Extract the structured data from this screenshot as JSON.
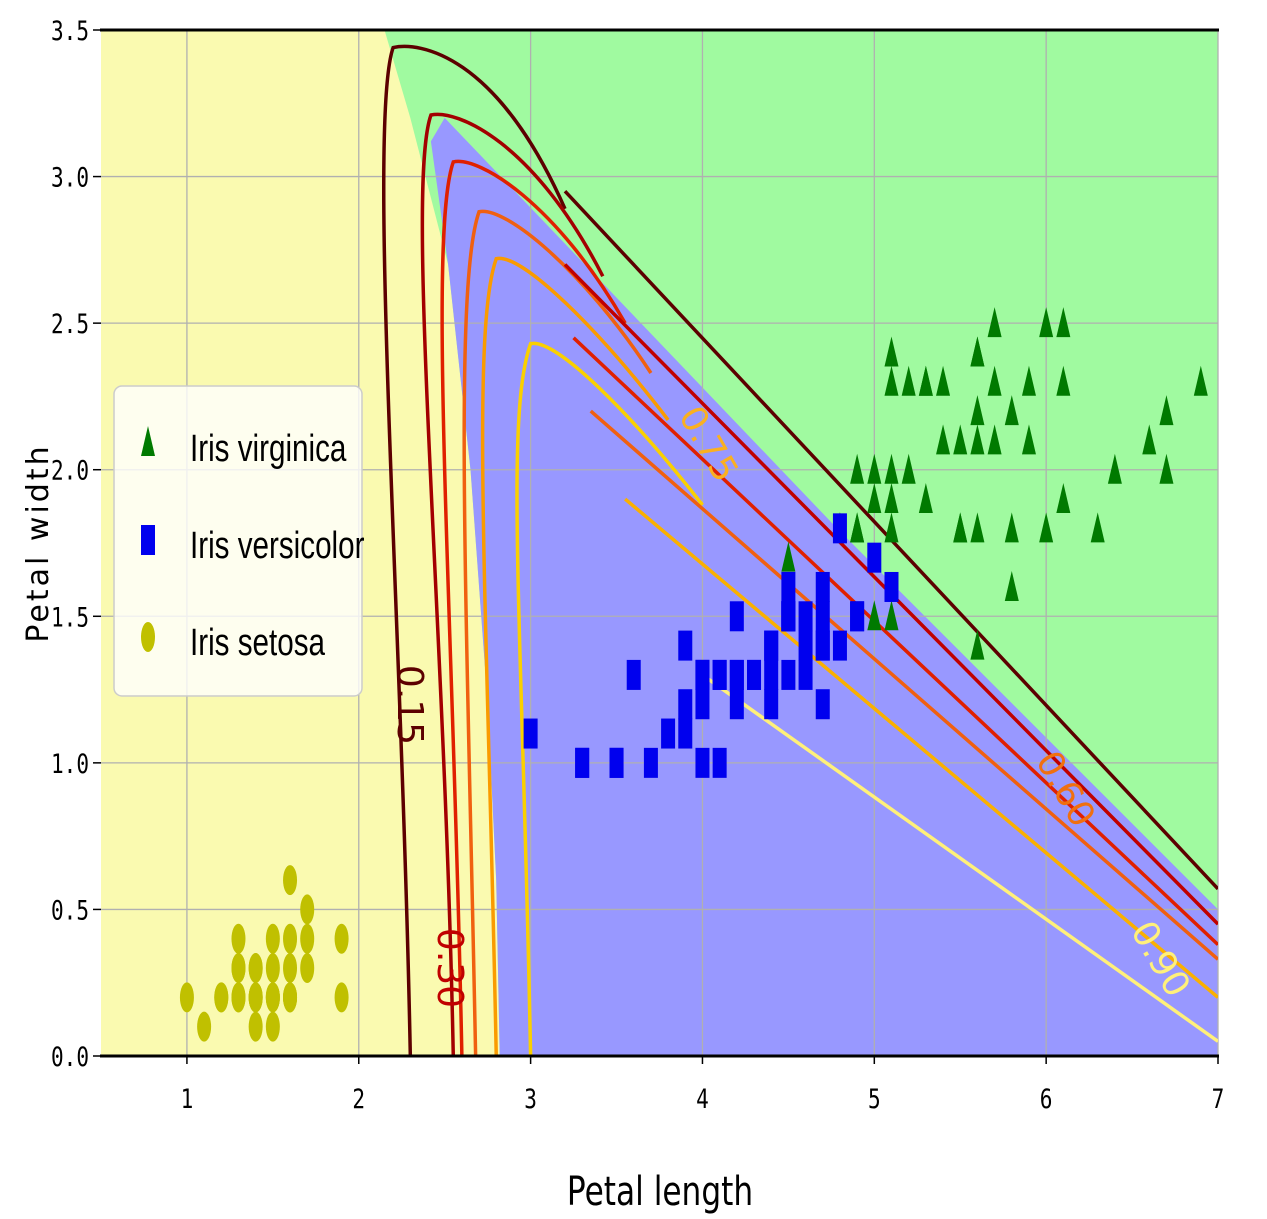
{
  "chart_data": {
    "type": "scatter",
    "title": "",
    "xlabel": "Petal length",
    "ylabel": "Petal width",
    "xlim": [
      0.5,
      7
    ],
    "ylim": [
      0,
      3.5
    ],
    "grid": true,
    "xticks": [
      "1",
      "2",
      "3",
      "4",
      "5",
      "6",
      "7"
    ],
    "yticks": [
      "0.0",
      "0.5",
      "1.0",
      "1.5",
      "2.0",
      "2.5",
      "3.0",
      "3.5"
    ],
    "legend_position": "center-left",
    "regions": [
      {
        "name": "Iris setosa",
        "color": "#fafab0"
      },
      {
        "name": "Iris versicolor",
        "color": "#9898ff"
      },
      {
        "name": "Iris virginica",
        "color": "#a0faa0"
      }
    ],
    "contour_labels": [
      "0.15",
      "0.30",
      "0.60",
      "0.75",
      "0.90"
    ],
    "contour_colors": [
      "#5c0000",
      "#a30000",
      "#e02000",
      "#f06010",
      "#fa9b00",
      "#fad000",
      "#fff48c"
    ],
    "series": [
      {
        "name": "Iris virginica",
        "color": "#007a00",
        "marker": "triangle",
        "points": [
          [
            6.0,
            2.5
          ],
          [
            5.1,
            1.9
          ],
          [
            5.9,
            2.1
          ],
          [
            5.6,
            1.8
          ],
          [
            5.8,
            2.2
          ],
          [
            6.6,
            2.1
          ],
          [
            4.5,
            1.7
          ],
          [
            6.3,
            1.8
          ],
          [
            5.8,
            1.8
          ],
          [
            6.1,
            2.5
          ],
          [
            5.1,
            2.0
          ],
          [
            5.3,
            1.9
          ],
          [
            5.5,
            2.1
          ],
          [
            5.0,
            2.0
          ],
          [
            5.1,
            2.4
          ],
          [
            5.3,
            2.3
          ],
          [
            5.5,
            1.8
          ],
          [
            6.7,
            2.2
          ],
          [
            6.9,
            2.3
          ],
          [
            5.0,
            1.5
          ],
          [
            5.7,
            2.3
          ],
          [
            4.9,
            2.0
          ],
          [
            6.7,
            2.0
          ],
          [
            4.9,
            1.8
          ],
          [
            5.7,
            2.1
          ],
          [
            6.0,
            1.8
          ],
          [
            4.8,
            1.8
          ],
          [
            4.9,
            1.8
          ],
          [
            5.6,
            2.1
          ],
          [
            5.8,
            1.6
          ],
          [
            6.1,
            1.9
          ],
          [
            6.4,
            2.0
          ],
          [
            5.6,
            2.2
          ],
          [
            5.1,
            1.5
          ],
          [
            5.6,
            1.4
          ],
          [
            6.1,
            2.3
          ],
          [
            5.6,
            2.4
          ],
          [
            5.5,
            1.8
          ],
          [
            4.8,
            1.8
          ],
          [
            5.4,
            2.1
          ],
          [
            5.6,
            2.4
          ],
          [
            5.1,
            2.3
          ],
          [
            5.9,
            2.3
          ],
          [
            5.7,
            2.5
          ],
          [
            5.2,
            2.3
          ],
          [
            5.0,
            1.9
          ],
          [
            5.2,
            2.0
          ],
          [
            5.4,
            2.3
          ],
          [
            5.1,
            1.8
          ],
          [
            5.3,
            2.3
          ]
        ]
      },
      {
        "name": "Iris versicolor",
        "color": "#0000ee",
        "marker": "square",
        "points": [
          [
            4.7,
            1.4
          ],
          [
            4.5,
            1.5
          ],
          [
            4.9,
            1.5
          ],
          [
            4.0,
            1.3
          ],
          [
            4.6,
            1.5
          ],
          [
            4.5,
            1.3
          ],
          [
            4.7,
            1.6
          ],
          [
            3.3,
            1.0
          ],
          [
            4.6,
            1.3
          ],
          [
            3.9,
            1.4
          ],
          [
            3.5,
            1.0
          ],
          [
            4.2,
            1.5
          ],
          [
            4.0,
            1.0
          ],
          [
            4.7,
            1.4
          ],
          [
            3.6,
            1.3
          ],
          [
            4.4,
            1.4
          ],
          [
            4.5,
            1.5
          ],
          [
            4.1,
            1.0
          ],
          [
            4.5,
            1.5
          ],
          [
            3.9,
            1.1
          ],
          [
            4.8,
            1.8
          ],
          [
            4.0,
            1.3
          ],
          [
            4.9,
            1.5
          ],
          [
            4.7,
            1.2
          ],
          [
            4.3,
            1.3
          ],
          [
            4.4,
            1.4
          ],
          [
            4.8,
            1.4
          ],
          [
            5.0,
            1.7
          ],
          [
            4.5,
            1.5
          ],
          [
            3.5,
            1.0
          ],
          [
            3.8,
            1.1
          ],
          [
            3.7,
            1.0
          ],
          [
            3.9,
            1.2
          ],
          [
            5.1,
            1.6
          ],
          [
            4.5,
            1.5
          ],
          [
            4.5,
            1.6
          ],
          [
            4.7,
            1.5
          ],
          [
            4.4,
            1.3
          ],
          [
            4.1,
            1.3
          ],
          [
            4.0,
            1.3
          ],
          [
            4.4,
            1.2
          ],
          [
            4.6,
            1.4
          ],
          [
            4.0,
            1.2
          ],
          [
            3.3,
            1.0
          ],
          [
            4.2,
            1.3
          ],
          [
            4.2,
            1.2
          ],
          [
            4.2,
            1.3
          ],
          [
            4.3,
            1.3
          ],
          [
            3.0,
            1.1
          ],
          [
            4.1,
            1.3
          ]
        ]
      },
      {
        "name": "Iris setosa",
        "color": "#c0c000",
        "marker": "circle",
        "points": [
          [
            1.4,
            0.2
          ],
          [
            1.3,
            0.2
          ],
          [
            1.5,
            0.2
          ],
          [
            1.7,
            0.4
          ],
          [
            1.4,
            0.3
          ],
          [
            1.5,
            0.1
          ],
          [
            1.5,
            0.2
          ],
          [
            1.6,
            0.2
          ],
          [
            1.4,
            0.1
          ],
          [
            1.1,
            0.1
          ],
          [
            1.2,
            0.2
          ],
          [
            1.5,
            0.4
          ],
          [
            1.3,
            0.4
          ],
          [
            1.4,
            0.3
          ],
          [
            1.7,
            0.3
          ],
          [
            1.5,
            0.3
          ],
          [
            1.0,
            0.2
          ],
          [
            1.7,
            0.5
          ],
          [
            1.9,
            0.2
          ],
          [
            1.6,
            0.4
          ],
          [
            1.6,
            0.2
          ],
          [
            1.4,
            0.2
          ],
          [
            1.5,
            0.2
          ],
          [
            1.2,
            0.2
          ],
          [
            1.3,
            0.2
          ],
          [
            1.3,
            0.3
          ],
          [
            1.3,
            0.3
          ],
          [
            1.6,
            0.6
          ],
          [
            1.9,
            0.4
          ],
          [
            1.6,
            0.3
          ],
          [
            1.4,
            0.2
          ],
          [
            1.6,
            0.2
          ]
        ]
      }
    ]
  }
}
